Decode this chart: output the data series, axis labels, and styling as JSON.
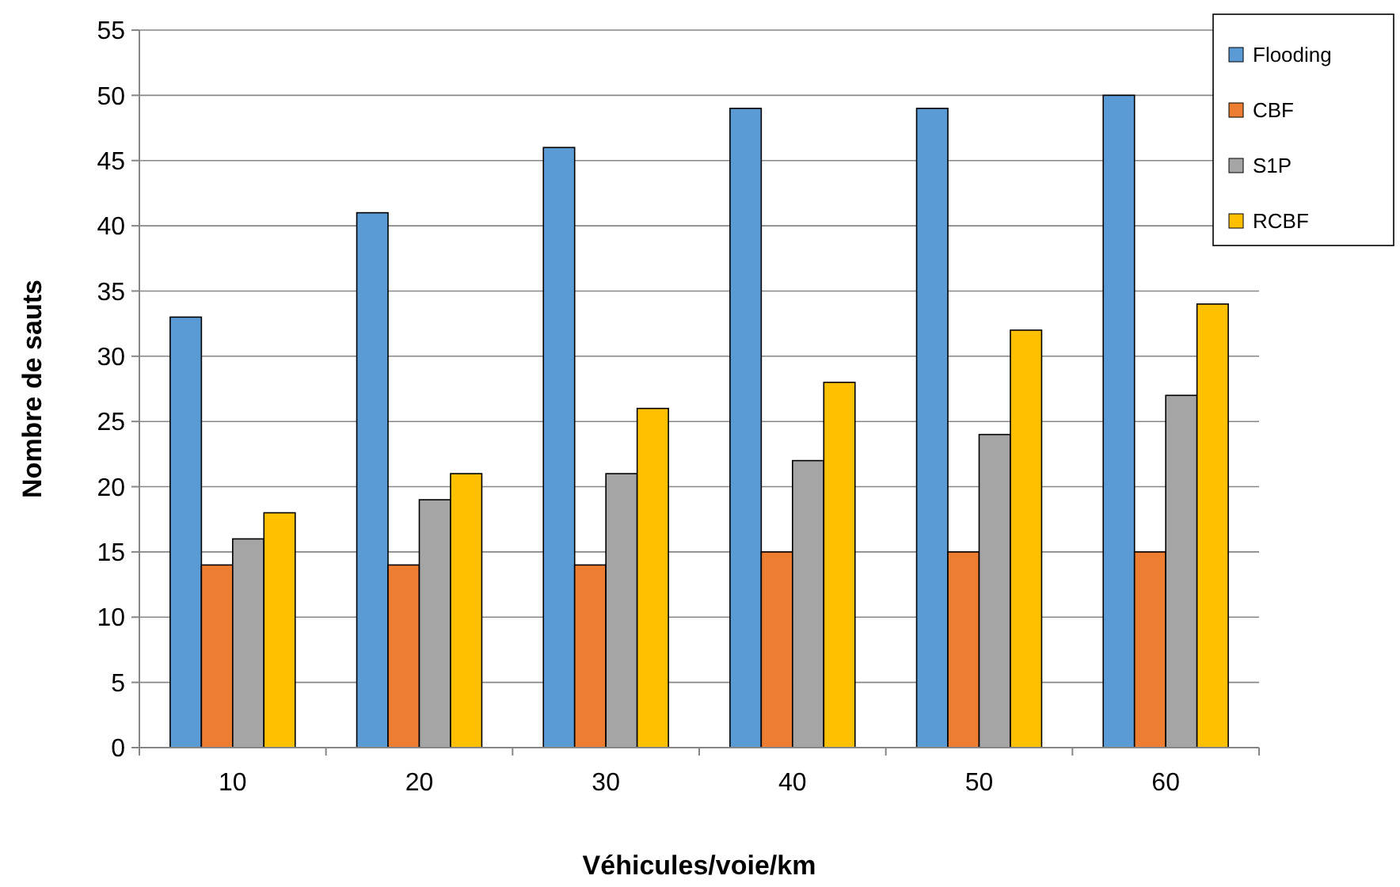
{
  "chart_data": {
    "type": "bar",
    "xlabel": "Véhicules/voie/km",
    "ylabel": "Nombre de sauts",
    "categories": [
      "10",
      "20",
      "30",
      "40",
      "50",
      "60"
    ],
    "series": [
      {
        "name": "Flooding",
        "color": "#5b9bd5",
        "values": [
          33,
          41,
          46,
          49,
          49,
          50
        ]
      },
      {
        "name": "CBF",
        "color": "#ed7d31",
        "values": [
          14,
          14,
          14,
          15,
          15,
          15
        ]
      },
      {
        "name": "S1P",
        "color": "#a5a5a5",
        "values": [
          16,
          19,
          21,
          22,
          24,
          27
        ]
      },
      {
        "name": "RCBF",
        "color": "#ffc000",
        "values": [
          18,
          21,
          26,
          28,
          32,
          34
        ]
      }
    ],
    "ylim": [
      0,
      55
    ],
    "yticks": [
      0,
      5,
      10,
      15,
      20,
      25,
      30,
      35,
      40,
      45,
      50,
      55
    ],
    "grid": "y",
    "legend": "top right"
  }
}
